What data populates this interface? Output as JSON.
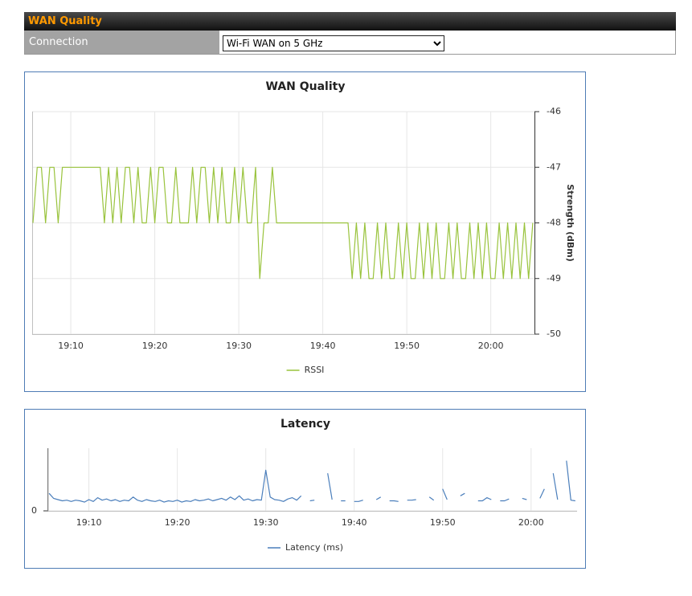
{
  "header": {
    "title": "WAN Quality",
    "connection_label": "Connection",
    "connection_value": "Wi-Fi WAN on 5 GHz"
  },
  "chart_data": [
    {
      "type": "line",
      "title": "WAN Quality",
      "y_axis_label": "Strength (dBm)",
      "y_axis_position": "right",
      "grid": true,
      "xlim": [
        1145.4,
        1205.2
      ],
      "xticks": [
        {
          "value": 1150,
          "label": "19:10"
        },
        {
          "value": 1160,
          "label": "19:20"
        },
        {
          "value": 1170,
          "label": "19:30"
        },
        {
          "value": 1180,
          "label": "19:40"
        },
        {
          "value": 1190,
          "label": "19:50"
        },
        {
          "value": 1200,
          "label": "20:00"
        }
      ],
      "ylim": [
        -50,
        -46
      ],
      "yticks": [
        -46,
        -47,
        -48,
        -49,
        -50
      ],
      "x": [
        1145.5,
        1146,
        1146.5,
        1147,
        1147.5,
        1148,
        1148.5,
        1149,
        1149.5,
        1150,
        1150.5,
        1151,
        1151.5,
        1152,
        1152.5,
        1153,
        1153.5,
        1154,
        1154.5,
        1155,
        1155.5,
        1156,
        1156.5,
        1157,
        1157.5,
        1158,
        1158.5,
        1159,
        1159.5,
        1160,
        1160.5,
        1161,
        1161.5,
        1162,
        1162.5,
        1163,
        1163.5,
        1164,
        1164.5,
        1165,
        1165.5,
        1166,
        1166.5,
        1167,
        1167.5,
        1168,
        1168.5,
        1169,
        1169.5,
        1170,
        1170.5,
        1171,
        1171.5,
        1172,
        1172.5,
        1173,
        1173.5,
        1174,
        1174.5,
        1175,
        1175.5,
        1176,
        1176.5,
        1177,
        1177.5,
        1178,
        1178.5,
        1179,
        1179.5,
        1180,
        1180.5,
        1181,
        1181.5,
        1182,
        1182.5,
        1183,
        1183.5,
        1184,
        1184.5,
        1185,
        1185.5,
        1186,
        1186.5,
        1187,
        1187.5,
        1188,
        1188.5,
        1189,
        1189.5,
        1190,
        1190.5,
        1191,
        1191.5,
        1192,
        1192.5,
        1193,
        1193.5,
        1194,
        1194.5,
        1195,
        1195.5,
        1196,
        1196.5,
        1197,
        1197.5,
        1198,
        1198.5,
        1199,
        1199.5,
        1200,
        1200.5,
        1201,
        1201.5,
        1202,
        1202.5,
        1203,
        1203.5,
        1204,
        1204.5,
        1205
      ],
      "series": [
        {
          "name": "RSSI",
          "color": "#99c33c",
          "values": [
            -48,
            -47,
            -47,
            -48,
            -47,
            -47,
            -48,
            -47,
            -47,
            -47,
            -47,
            -47,
            -47,
            -47,
            -47,
            -47,
            -47,
            -48,
            -47,
            -48,
            -47,
            -48,
            -47,
            -47,
            -48,
            -47,
            -48,
            -48,
            -47,
            -48,
            -47,
            -47,
            -48,
            -48,
            -47,
            -48,
            -48,
            -48,
            -47,
            -48,
            -47,
            -47,
            -48,
            -47,
            -48,
            -47,
            -48,
            -48,
            -47,
            -48,
            -47,
            -48,
            -48,
            -47,
            -49,
            -48,
            -48,
            -47,
            -48,
            -48,
            -48,
            -48,
            -48,
            -48,
            -48,
            -48,
            -48,
            -48,
            -48,
            -48,
            -48,
            -48,
            -48,
            -48,
            -48,
            -48,
            -49,
            -48,
            -49,
            -48,
            -49,
            -49,
            -48,
            -49,
            -48,
            -49,
            -49,
            -48,
            -49,
            -48,
            -49,
            -49,
            -48,
            -49,
            -48,
            -49,
            -48,
            -49,
            -49,
            -48,
            -49,
            -48,
            -49,
            -49,
            -48,
            -49,
            -48,
            -49,
            -48,
            -49,
            -49,
            -48,
            -49,
            -48,
            -49,
            -48,
            -49,
            -48,
            -49,
            -48
          ]
        }
      ]
    },
    {
      "type": "line",
      "title": "Latency",
      "y_axis_position": "left",
      "grid": true,
      "xlim": [
        1145.4,
        1205.2
      ],
      "xticks": [
        {
          "value": 1150,
          "label": "19:10"
        },
        {
          "value": 1160,
          "label": "19:20"
        },
        {
          "value": 1170,
          "label": "19:30"
        },
        {
          "value": 1180,
          "label": "19:40"
        },
        {
          "value": 1190,
          "label": "19:50"
        },
        {
          "value": 1200,
          "label": "20:00"
        }
      ],
      "ylim": [
        0,
        100
      ],
      "yticks": [
        0
      ],
      "x": [
        1145.5,
        1146,
        1146.5,
        1147,
        1147.5,
        1148,
        1148.5,
        1149,
        1149.5,
        1150,
        1150.5,
        1151,
        1151.5,
        1152,
        1152.5,
        1153,
        1153.5,
        1154,
        1154.5,
        1155,
        1155.5,
        1156,
        1156.5,
        1157,
        1157.5,
        1158,
        1158.5,
        1159,
        1159.5,
        1160,
        1160.5,
        1161,
        1161.5,
        1162,
        1162.5,
        1163,
        1163.5,
        1164,
        1164.5,
        1165,
        1165.5,
        1166,
        1166.5,
        1167,
        1167.5,
        1168,
        1168.5,
        1169,
        1169.5,
        1170,
        1170.5,
        1171,
        1171.5,
        1172,
        1172.5,
        1173,
        1173.5,
        1174,
        1174.5,
        1175,
        1175.5,
        1176,
        1176.5,
        1177,
        1177.5,
        1178,
        1178.5,
        1179,
        1179.5,
        1180,
        1180.5,
        1181,
        1181.5,
        1182,
        1182.5,
        1183,
        1183.5,
        1184,
        1184.5,
        1185,
        1185.5,
        1186,
        1186.5,
        1187,
        1187.5,
        1188,
        1188.5,
        1189,
        1189.5,
        1190,
        1190.5,
        1191,
        1191.5,
        1192,
        1192.5,
        1193,
        1193.5,
        1194,
        1194.5,
        1195,
        1195.5,
        1196,
        1196.5,
        1197,
        1197.5,
        1198,
        1198.5,
        1199,
        1199.5,
        1200,
        1200.5,
        1201,
        1201.5,
        1202,
        1202.5,
        1203,
        1203.5,
        1204,
        1204.5,
        1205
      ],
      "series": [
        {
          "name": "Latency (ms)",
          "color": "#4a7ebb",
          "values": [
            28,
            20,
            18,
            16,
            17,
            15,
            17,
            16,
            14,
            18,
            15,
            21,
            17,
            19,
            16,
            18,
            15,
            17,
            16,
            22,
            17,
            15,
            18,
            16,
            15,
            17,
            14,
            16,
            15,
            17,
            14,
            16,
            15,
            18,
            16,
            17,
            19,
            16,
            18,
            20,
            17,
            22,
            18,
            24,
            17,
            19,
            16,
            18,
            17,
            65,
            22,
            18,
            17,
            15,
            19,
            21,
            17,
            24,
            null,
            16,
            17,
            null,
            null,
            60,
            18,
            null,
            16,
            16,
            null,
            15,
            15,
            17,
            null,
            null,
            18,
            22,
            null,
            16,
            16,
            15,
            null,
            17,
            17,
            18,
            null,
            null,
            22,
            17,
            null,
            35,
            18,
            null,
            null,
            24,
            28,
            null,
            null,
            16,
            16,
            21,
            18,
            null,
            16,
            16,
            19,
            null,
            null,
            20,
            18,
            null,
            null,
            20,
            35,
            null,
            60,
            18,
            null,
            80,
            17,
            16
          ]
        }
      ]
    }
  ]
}
